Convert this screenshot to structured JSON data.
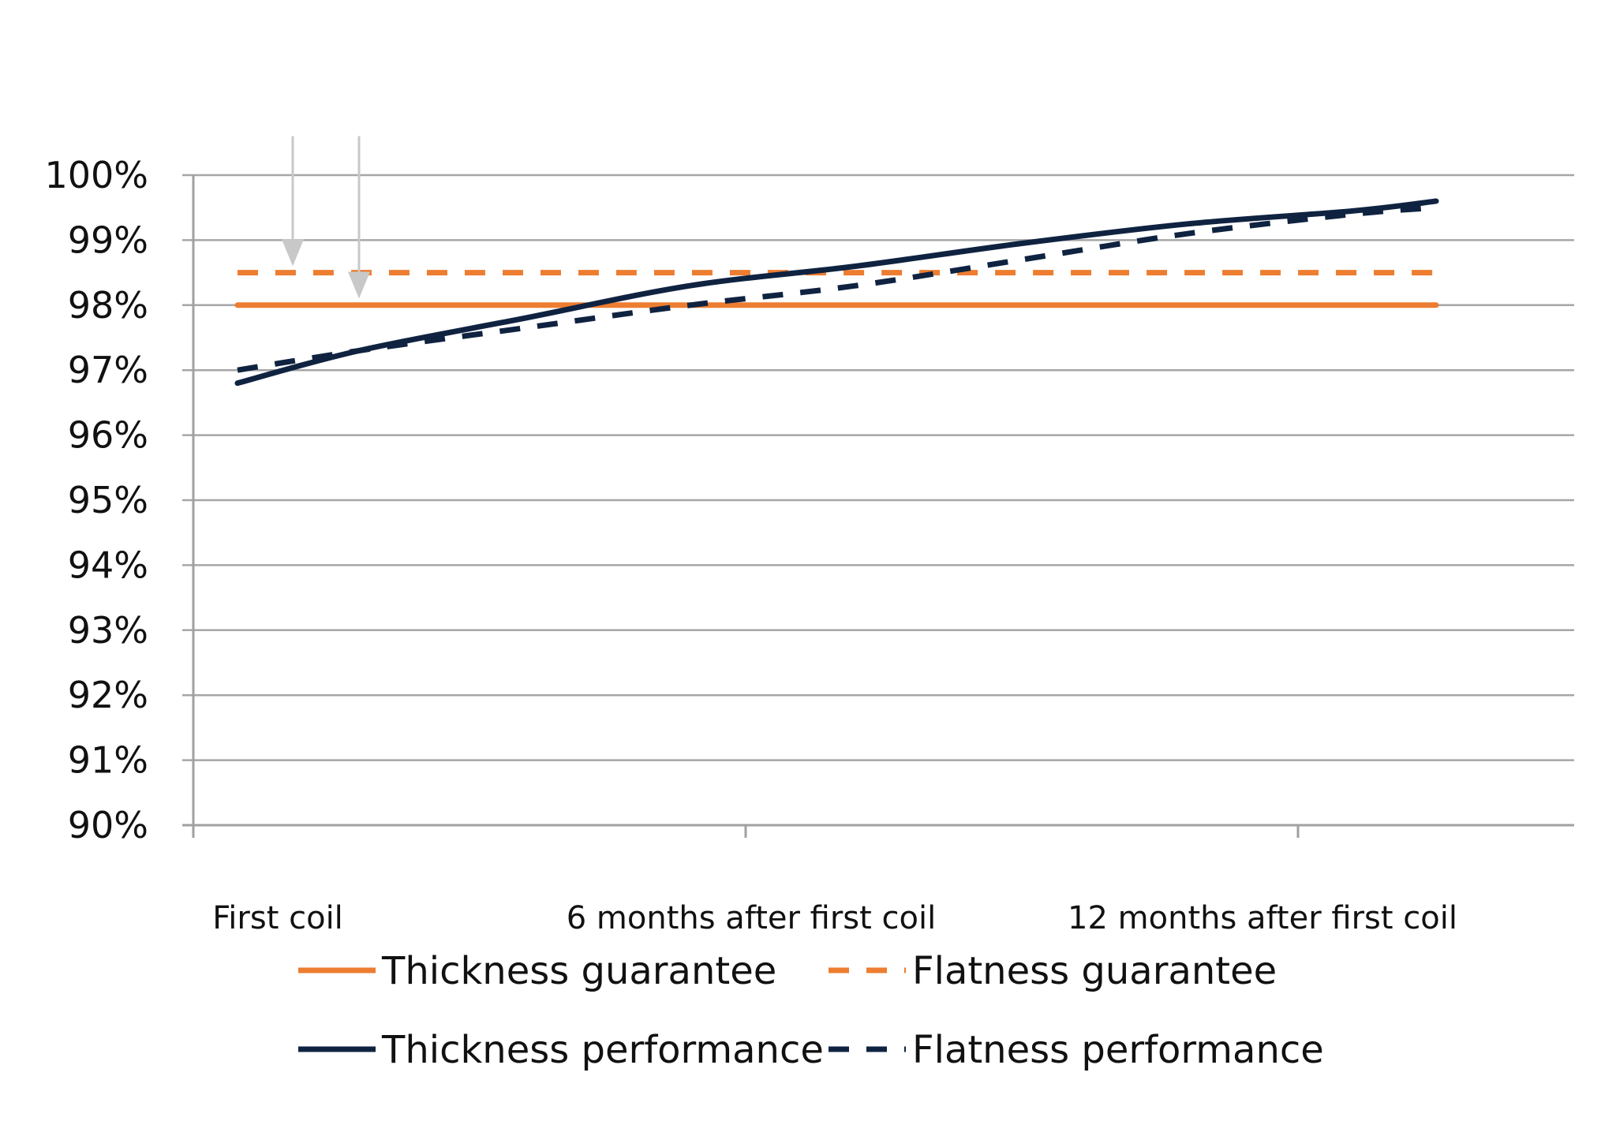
{
  "chart_data": {
    "type": "line",
    "title": "",
    "xlabel": "",
    "ylabel": "",
    "y_tick_labels": [
      "90%",
      "91%",
      "92%",
      "93%",
      "94%",
      "95%",
      "96%",
      "97%",
      "98%",
      "99%",
      "100%"
    ],
    "x_tick_labels": [
      "First coil",
      "6 months after first coil",
      "12 months after first coil"
    ],
    "ylim": [
      90,
      100
    ],
    "xlim": [
      0,
      2.5
    ],
    "grid": true,
    "legend_position": "bottom",
    "series": [
      {
        "name": "Thickness guarantee",
        "color": "#ED7D31",
        "style": "solid",
        "x": [
          0.08,
          2.25
        ],
        "y": [
          98,
          98
        ]
      },
      {
        "name": "Flatness guarantee",
        "color": "#ED7D31",
        "style": "dashed",
        "x": [
          0.08,
          2.25
        ],
        "y": [
          98.5,
          98.5
        ]
      },
      {
        "name": "Thickness performance",
        "color": "#0F2341",
        "style": "solid",
        "x": [
          0.08,
          0.3,
          0.6,
          0.9,
          1.2,
          1.5,
          1.8,
          2.1,
          2.25
        ],
        "y": [
          96.8,
          97.3,
          97.8,
          98.3,
          98.6,
          98.95,
          99.25,
          99.45,
          99.6
        ]
      },
      {
        "name": "Flatness performance",
        "color": "#0F2341",
        "style": "dashed",
        "x": [
          0.08,
          0.3,
          0.6,
          0.9,
          1.2,
          1.5,
          1.8,
          2.1,
          2.25
        ],
        "y": [
          97.0,
          97.3,
          97.65,
          98.0,
          98.3,
          98.7,
          99.1,
          99.4,
          99.5
        ]
      }
    ],
    "annotations": [
      {
        "type": "arrow",
        "label": "",
        "x": 0.18,
        "y_from": 100.6,
        "y_to": 98.6,
        "color": "#C8C8C8"
      },
      {
        "type": "arrow",
        "label": "",
        "x": 0.3,
        "y_from": 100.6,
        "y_to": 98.1,
        "color": "#C8C8C8"
      }
    ]
  }
}
